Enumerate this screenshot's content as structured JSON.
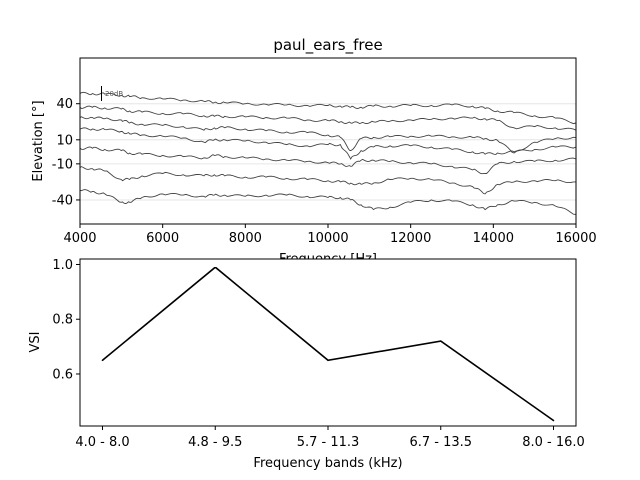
{
  "chart_data": [
    {
      "type": "line",
      "title": "paul_ears_free",
      "xlabel": "Frequency [Hz]",
      "ylabel": "Elevation [°]",
      "xlim": [
        4000,
        16000
      ],
      "xticks": [
        4000,
        6000,
        8000,
        10000,
        12000,
        14000,
        16000
      ],
      "xtick_labels": [
        "4000",
        "6000",
        "8000",
        "10000",
        "12000",
        "14000",
        "16000"
      ],
      "ylim": [
        -60,
        78
      ],
      "yticks": [
        40,
        10,
        -10,
        -40
      ],
      "ytick_labels": [
        "40",
        "10",
        "-10",
        "-40"
      ],
      "grid": "horizontal lines at elevation ticks",
      "scale_bar_label": "20dB",
      "line_color": "#444444",
      "x": [
        4000,
        4300,
        4600,
        5000,
        5200,
        5500,
        6000,
        6500,
        7000,
        7250,
        7500,
        8000,
        8500,
        9000,
        9500,
        10000,
        10300,
        10550,
        10800,
        11100,
        11500,
        12000,
        12500,
        13000,
        13500,
        13800,
        14100,
        14500,
        15000,
        15500,
        16000
      ],
      "series": [
        {
          "elevation": 40,
          "values": [
            48.5,
            48.5,
            48.0,
            47.0,
            46.0,
            45.0,
            44.0,
            43.0,
            42.0,
            41.0,
            41.0,
            40.0,
            39.5,
            39.0,
            38.5,
            38.5,
            38.0,
            37.0,
            37.0,
            38.0,
            38.0,
            38.5,
            38.5,
            39.0,
            38.0,
            36.0,
            34.0,
            32.5,
            30.0,
            28.0,
            24.0
          ]
        },
        {
          "elevation": 30,
          "values": [
            37.0,
            37.0,
            36.5,
            35.5,
            34.0,
            33.0,
            32.0,
            31.5,
            30.0,
            29.5,
            29.5,
            29.0,
            28.5,
            28.0,
            26.5,
            26.0,
            25.0,
            24.0,
            24.0,
            25.0,
            25.5,
            26.5,
            27.0,
            28.0,
            28.0,
            27.5,
            26.0,
            20.0,
            21.0,
            20.0,
            18.0
          ]
        },
        {
          "elevation": 20,
          "values": [
            28.5,
            28.5,
            27.5,
            26.5,
            24.0,
            23.0,
            22.0,
            21.0,
            18.0,
            20.0,
            20.0,
            19.0,
            17.5,
            16.5,
            16.0,
            14.0,
            12.0,
            1.0,
            11.0,
            12.0,
            12.5,
            13.0,
            13.0,
            12.5,
            12.0,
            11.0,
            9.5,
            -1.0,
            8.0,
            11.0,
            12.0
          ]
        },
        {
          "elevation": 10,
          "values": [
            19.0,
            19.0,
            18.5,
            17.0,
            15.0,
            14.0,
            13.0,
            11.5,
            8.0,
            10.0,
            10.0,
            9.0,
            8.0,
            6.0,
            5.0,
            6.0,
            6.0,
            -6.0,
            1.0,
            4.0,
            5.0,
            5.0,
            4.0,
            2.0,
            0.0,
            -2.0,
            -1.0,
            0.0,
            2.0,
            4.0,
            4.0
          ]
        },
        {
          "elevation": -10,
          "values": [
            3.0,
            3.0,
            2.0,
            1.0,
            -1.0,
            -2.0,
            -3.0,
            -4.0,
            -5.0,
            -3.0,
            -4.0,
            -5.0,
            -6.0,
            -7.0,
            -8.0,
            -9.0,
            -10.0,
            -12.0,
            -7.0,
            -7.0,
            -8.0,
            -9.0,
            -10.0,
            -12.0,
            -15.0,
            -18.0,
            -10.0,
            -8.0,
            -8.0,
            -7.0,
            -6.0
          ]
        },
        {
          "elevation": -30,
          "values": [
            -13.0,
            -14.0,
            -16.0,
            -23.0,
            -23.0,
            -20.0,
            -18.0,
            -19.0,
            -20.0,
            -19.0,
            -20.0,
            -21.0,
            -21.0,
            -22.0,
            -23.0,
            -24.0,
            -25.0,
            -26.0,
            -27.0,
            -26.0,
            -23.0,
            -22.0,
            -23.0,
            -26.0,
            -29.0,
            -35.0,
            -27.0,
            -25.0,
            -24.0,
            -24.0,
            -25.0
          ]
        },
        {
          "elevation": -50,
          "values": [
            -32.0,
            -33.0,
            -35.0,
            -42.0,
            -42.0,
            -38.0,
            -35.0,
            -36.0,
            -37.0,
            -36.0,
            -36.0,
            -37.0,
            -36.0,
            -36.0,
            -37.0,
            -38.0,
            -38.0,
            -40.0,
            -44.0,
            -48.0,
            -46.0,
            -42.0,
            -40.0,
            -41.0,
            -44.0,
            -48.0,
            -44.0,
            -41.0,
            -42.0,
            -45.0,
            -52.0
          ]
        }
      ]
    },
    {
      "type": "line",
      "xlabel": "Frequency bands (kHz)",
      "ylabel": "VSI",
      "categories": [
        "4.0 - 8.0",
        "4.8 - 9.5",
        "5.7 - 11.3",
        "6.7 - 13.5",
        "8.0 - 16.0"
      ],
      "values": [
        0.65,
        0.99,
        0.65,
        0.72,
        0.43
      ],
      "ylim": [
        0.41,
        1.02
      ],
      "yticks": [
        0.6,
        0.8,
        1.0
      ],
      "ytick_labels": [
        "0.6",
        "0.8",
        "1.0"
      ],
      "grid": false,
      "line_color": "#000000"
    }
  ]
}
